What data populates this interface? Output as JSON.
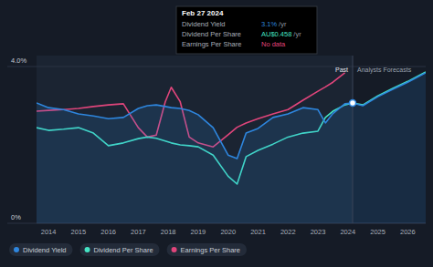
{
  "chart_data": {
    "type": "line",
    "x": [
      2013.6,
      2014,
      2014.5,
      2015,
      2015.5,
      2016,
      2016.5,
      2017,
      2017.3,
      2017.6,
      2017.9,
      2018.1,
      2018.4,
      2018.7,
      2019,
      2019.5,
      2020,
      2020.3,
      2020.6,
      2021,
      2021.5,
      2022,
      2022.5,
      2023,
      2023.25,
      2023.5,
      2023.9,
      2024.16,
      2024.5,
      2025,
      2025.5,
      2026,
      2026.6
    ],
    "series": [
      {
        "name": "Dividend Yield",
        "color": "#2e86de",
        "type": "area",
        "values": [
          3.07,
          2.95,
          2.9,
          2.79,
          2.74,
          2.67,
          2.7,
          2.93,
          3.0,
          3.02,
          2.98,
          2.95,
          2.93,
          2.88,
          2.77,
          2.44,
          1.74,
          1.65,
          2.3,
          2.42,
          2.7,
          2.79,
          2.95,
          2.9,
          2.56,
          2.8,
          3.05,
          3.07,
          3.0,
          3.23,
          3.42,
          3.6,
          3.84
        ]
      },
      {
        "name": "Dividend Per Share",
        "color": "#45e3c4",
        "type": "line",
        "values": [
          2.44,
          2.37,
          2.4,
          2.44,
          2.3,
          1.98,
          2.05,
          2.16,
          2.2,
          2.17,
          2.1,
          2.05,
          2.0,
          1.98,
          1.95,
          1.74,
          1.2,
          1.0,
          1.7,
          1.86,
          2.02,
          2.2,
          2.3,
          2.35,
          2.7,
          2.86,
          3.02,
          3.07,
          3.02,
          3.25,
          3.44,
          3.62,
          3.86
        ]
      },
      {
        "name": "Earnings Per Share",
        "color": "#e0457b",
        "type": "line",
        "values": [
          2.86,
          2.88,
          2.9,
          2.93,
          2.98,
          3.02,
          3.05,
          2.44,
          2.2,
          2.25,
          3.1,
          3.47,
          3.1,
          2.2,
          2.05,
          1.95,
          2.26,
          2.45,
          2.56,
          2.67,
          2.79,
          2.9,
          3.14,
          3.37,
          3.48,
          3.6,
          3.84,
          null,
          null,
          null,
          null,
          null,
          null
        ]
      }
    ],
    "xlim": [
      2013.6,
      2026.6
    ],
    "xticks": [
      2014,
      2015,
      2016,
      2017,
      2018,
      2019,
      2020,
      2021,
      2022,
      2023,
      2024,
      2025,
      2026
    ],
    "ylim": [
      0,
      4
    ],
    "yticks": [
      {
        "value": 0,
        "label": "0%"
      },
      {
        "value": 4,
        "label": "4.0%"
      }
    ],
    "grid": true,
    "legend": "bottom",
    "annotations": [
      {
        "text": "Past",
        "x": 2024.16
      },
      {
        "text": "Analysts Forecasts",
        "x": 2024.16
      }
    ],
    "tooltip": {
      "title": "Feb 27 2024",
      "rows": [
        {
          "label": "Dividend Yield",
          "value": "3.1%",
          "suffix": "/yr"
        },
        {
          "label": "Dividend Per Share",
          "value": "AU$0.458",
          "suffix": "/yr"
        },
        {
          "label": "Earnings Per Share",
          "value": "No data"
        }
      ]
    }
  }
}
